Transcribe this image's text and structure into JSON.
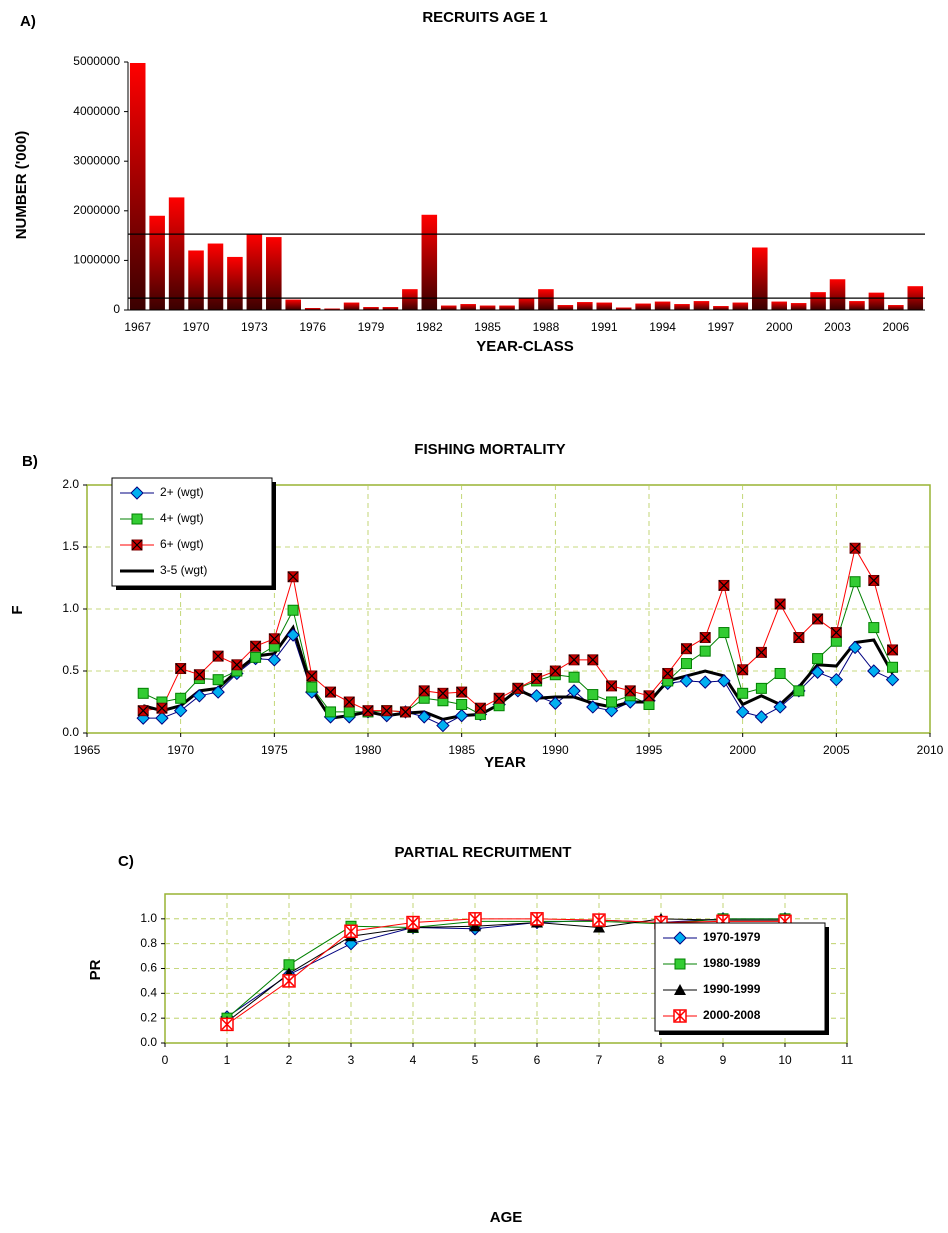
{
  "chart_data": [
    {
      "type": "bar",
      "panel_label": "A)",
      "title": "RECRUITS AGE 1",
      "xlabel": "YEAR-CLASS",
      "ylabel": "NUMBER ('000)",
      "categories": [
        "1967",
        null,
        null,
        "1970",
        null,
        null,
        "1973",
        null,
        null,
        "1976",
        null,
        null,
        "1979",
        null,
        null,
        "1982",
        null,
        null,
        "1985",
        null,
        null,
        "1988",
        null,
        null,
        "1991",
        null,
        null,
        "1994",
        null,
        null,
        "1997",
        null,
        null,
        "2000",
        null,
        null,
        "2003",
        null,
        null,
        "2006",
        null
      ],
      "values": [
        4980000,
        1900000,
        2270000,
        1200000,
        1340000,
        1070000,
        1530000,
        1470000,
        210000,
        40000,
        30000,
        150000,
        60000,
        60000,
        420000,
        1920000,
        90000,
        120000,
        90000,
        90000,
        250000,
        420000,
        100000,
        160000,
        150000,
        50000,
        130000,
        170000,
        120000,
        180000,
        80000,
        150000,
        1260000,
        170000,
        140000,
        360000,
        620000,
        180000,
        350000,
        100000,
        480000
      ],
      "color": "#ff0000",
      "hlines": [
        1530000,
        240000
      ],
      "ylim": [
        0,
        5000000
      ],
      "yticks": [
        0,
        1000000,
        2000000,
        3000000,
        4000000,
        5000000
      ],
      "grid": false
    },
    {
      "type": "line",
      "panel_label": "B)",
      "title": "FISHING MORTALITY",
      "xlabel": "YEAR",
      "ylabel": "F",
      "x": [
        1968,
        1969,
        1970,
        1971,
        1972,
        1973,
        1974,
        1975,
        1976,
        1977,
        1978,
        1979,
        1980,
        1981,
        1982,
        1983,
        1984,
        1985,
        1986,
        1987,
        1988,
        1989,
        1990,
        1991,
        1992,
        1993,
        1994,
        1995,
        1996,
        1997,
        1998,
        1999,
        2000,
        2001,
        2002,
        2003,
        2004,
        2005,
        2006,
        2007,
        2008
      ],
      "series": [
        {
          "name": "2+ (wgt)",
          "color": "#00b0f0",
          "line_color": "#000080",
          "marker": "diamond",
          "linewidth": 1,
          "values": [
            0.12,
            0.12,
            0.18,
            0.3,
            0.33,
            0.48,
            0.6,
            0.59,
            0.79,
            0.33,
            0.13,
            0.13,
            0.17,
            0.14,
            0.17,
            0.13,
            0.06,
            0.14,
            0.15,
            0.23,
            0.34,
            0.3,
            0.24,
            0.34,
            0.21,
            0.18,
            0.25,
            0.26,
            0.4,
            0.42,
            0.41,
            0.42,
            0.17,
            0.13,
            0.21,
            0.34,
            0.49,
            0.43,
            0.69,
            0.5,
            0.43
          ]
        },
        {
          "name": "4+ (wgt)",
          "color": "#33cc33",
          "line_color": "#008000",
          "marker": "square",
          "linewidth": 1,
          "values": [
            0.32,
            0.25,
            0.28,
            0.44,
            0.43,
            0.5,
            0.61,
            0.7,
            0.99,
            0.37,
            0.17,
            0.17,
            0.17,
            0.18,
            0.17,
            0.28,
            0.26,
            0.23,
            0.15,
            0.22,
            0.36,
            0.42,
            0.47,
            0.45,
            0.31,
            0.25,
            0.3,
            0.23,
            0.42,
            0.56,
            0.66,
            0.81,
            0.32,
            0.36,
            0.48,
            0.34,
            0.6,
            0.74,
            1.22,
            0.85,
            0.53
          ]
        },
        {
          "name": "6+ (wgt)",
          "color": "#cc0000",
          "line_color": "#ff0000",
          "marker": "cross-square",
          "linewidth": 1,
          "values": [
            0.18,
            0.2,
            0.52,
            0.47,
            0.62,
            0.55,
            0.7,
            0.76,
            1.26,
            0.46,
            0.33,
            0.25,
            0.18,
            0.18,
            0.17,
            0.34,
            0.32,
            0.33,
            0.2,
            0.28,
            0.36,
            0.44,
            0.5,
            0.59,
            0.59,
            0.38,
            0.34,
            0.3,
            0.48,
            0.68,
            0.77,
            1.19,
            0.51,
            0.65,
            1.04,
            0.77,
            0.92,
            0.81,
            1.49,
            1.23,
            0.67
          ]
        },
        {
          "name": "3-5 (wgt)",
          "color": "#000000",
          "line_color": "#000000",
          "marker": "none",
          "linewidth": 3,
          "values": [
            0.22,
            0.18,
            0.22,
            0.34,
            0.36,
            0.5,
            0.62,
            0.64,
            0.85,
            0.35,
            0.12,
            0.14,
            0.17,
            0.14,
            0.16,
            0.17,
            0.11,
            0.14,
            0.15,
            0.23,
            0.35,
            0.28,
            0.29,
            0.29,
            0.24,
            0.21,
            0.25,
            0.25,
            0.42,
            0.46,
            0.5,
            0.46,
            0.23,
            0.3,
            0.23,
            0.37,
            0.55,
            0.54,
            0.73,
            0.75,
            0.48
          ]
        }
      ],
      "xlim": [
        1965,
        2010
      ],
      "xticks": [
        1965,
        1970,
        1975,
        1980,
        1985,
        1990,
        1995,
        2000,
        2005,
        2010
      ],
      "ylim": [
        0,
        2
      ],
      "yticks": [
        {
          "value": 0,
          "label": "0.0"
        },
        {
          "value": 0.5,
          "label": "0.5"
        },
        {
          "value": 1,
          "label": "1.0"
        },
        {
          "value": 1.5,
          "label": "1.5"
        },
        {
          "value": 2,
          "label": "2.0"
        }
      ],
      "grid": true,
      "legend": "upper left"
    },
    {
      "type": "line",
      "panel_label": "C)",
      "title": "PARTIAL RECRUITMENT",
      "xlabel": "AGE",
      "ylabel": "PR",
      "x": [
        1,
        2,
        3,
        4,
        5,
        6,
        7,
        8,
        9,
        10
      ],
      "series": [
        {
          "name": "1970-1979",
          "color": "#00b0f0",
          "line_color": "#000080",
          "marker": "diamond",
          "linewidth": 1,
          "values": [
            0.21,
            0.55,
            0.8,
            0.93,
            0.92,
            0.97,
            0.99,
            0.97,
            1.0,
            1.0
          ]
        },
        {
          "name": "1980-1989",
          "color": "#33cc33",
          "line_color": "#008000",
          "marker": "square",
          "linewidth": 1,
          "values": [
            0.2,
            0.63,
            0.94,
            0.93,
            0.98,
            0.98,
            0.98,
            0.96,
            1.0,
            1.0
          ]
        },
        {
          "name": "1990-1999",
          "color": "#000000",
          "line_color": "#000000",
          "marker": "triangle",
          "linewidth": 1,
          "values": [
            0.17,
            0.56,
            0.86,
            0.93,
            0.94,
            0.97,
            0.93,
            1.0,
            0.99,
            0.99
          ]
        },
        {
          "name": "2000-2008",
          "color": "#ff0000",
          "line_color": "#ff0000",
          "marker": "star",
          "linewidth": 1,
          "values": [
            0.15,
            0.5,
            0.9,
            0.97,
            1.0,
            1.0,
            0.99,
            0.97,
            0.98,
            0.98
          ]
        }
      ],
      "xlim": [
        0,
        11
      ],
      "xticks": [
        0,
        1,
        2,
        3,
        4,
        5,
        6,
        7,
        8,
        9,
        10,
        11
      ],
      "ylim": [
        0,
        1.2
      ],
      "yticks": [
        {
          "value": 0,
          "label": "0.0"
        },
        {
          "value": 0.2,
          "label": "0.2"
        },
        {
          "value": 0.4,
          "label": "0.4"
        },
        {
          "value": 0.6,
          "label": "0.6"
        },
        {
          "value": 0.8,
          "label": "0.8"
        },
        {
          "value": 1,
          "label": "1.0"
        }
      ],
      "grid": true,
      "legend": "lower right"
    }
  ]
}
